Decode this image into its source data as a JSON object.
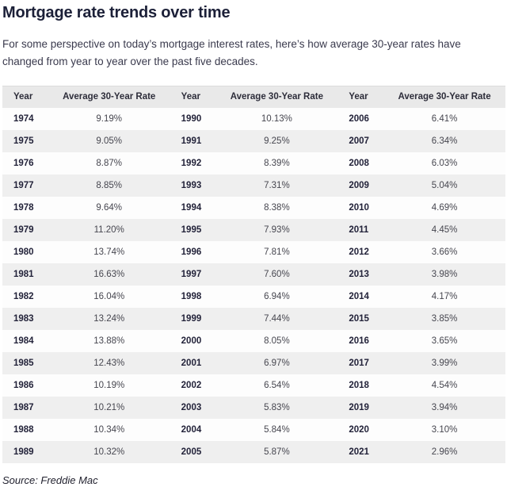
{
  "page": {
    "title": "Mortgage rate trends over time",
    "intro": "For some perspective on today’s mortgage interest rates, here’s how average 30-year rates have changed from year to year over the past five decades.",
    "source": "Source: Freddie Mac"
  },
  "table": {
    "column_headers": [
      "Year",
      "Average 30-Year Rate",
      "Year",
      "Average 30-Year Rate",
      "Year",
      "Average 30-Year Rate"
    ],
    "rows": [
      [
        "1974",
        "9.19%",
        "1990",
        "10.13%",
        "2006",
        "6.41%"
      ],
      [
        "1975",
        "9.05%",
        "1991",
        "9.25%",
        "2007",
        "6.34%"
      ],
      [
        "1976",
        "8.87%",
        "1992",
        "8.39%",
        "2008",
        "6.03%"
      ],
      [
        "1977",
        "8.85%",
        "1993",
        "7.31%",
        "2009",
        "5.04%"
      ],
      [
        "1978",
        "9.64%",
        "1994",
        "8.38%",
        "2010",
        "4.69%"
      ],
      [
        "1979",
        "11.20%",
        "1995",
        "7.93%",
        "2011",
        "4.45%"
      ],
      [
        "1980",
        "13.74%",
        "1996",
        "7.81%",
        "2012",
        "3.66%"
      ],
      [
        "1981",
        "16.63%",
        "1997",
        "7.60%",
        "2013",
        "3.98%"
      ],
      [
        "1982",
        "16.04%",
        "1998",
        "6.94%",
        "2014",
        "4.17%"
      ],
      [
        "1983",
        "13.24%",
        "1999",
        "7.44%",
        "2015",
        "3.85%"
      ],
      [
        "1984",
        "13.88%",
        "2000",
        "8.05%",
        "2016",
        "3.65%"
      ],
      [
        "1985",
        "12.43%",
        "2001",
        "6.97%",
        "2017",
        "3.99%"
      ],
      [
        "1986",
        "10.19%",
        "2002",
        "6.54%",
        "2018",
        "4.54%"
      ],
      [
        "1987",
        "10.21%",
        "2003",
        "5.83%",
        "2019",
        "3.94%"
      ],
      [
        "1988",
        "10.34%",
        "2004",
        "5.84%",
        "2020",
        "3.10%"
      ],
      [
        "1989",
        "10.32%",
        "2005",
        "5.87%",
        "2021",
        "2.96%"
      ]
    ]
  },
  "chart_data": {
    "type": "table",
    "title": "Mortgage rate trends over time",
    "xlabel": "Year",
    "ylabel": "Average 30-Year Rate",
    "source": "Freddie Mac",
    "x": [
      1974,
      1975,
      1976,
      1977,
      1978,
      1979,
      1980,
      1981,
      1982,
      1983,
      1984,
      1985,
      1986,
      1987,
      1988,
      1989,
      1990,
      1991,
      1992,
      1993,
      1994,
      1995,
      1996,
      1997,
      1998,
      1999,
      2000,
      2001,
      2002,
      2003,
      2004,
      2005,
      2006,
      2007,
      2008,
      2009,
      2010,
      2011,
      2012,
      2013,
      2014,
      2015,
      2016,
      2017,
      2018,
      2019,
      2020,
      2021
    ],
    "values": [
      9.19,
      9.05,
      8.87,
      8.85,
      9.64,
      11.2,
      13.74,
      16.63,
      16.04,
      13.24,
      13.88,
      12.43,
      10.19,
      10.21,
      10.34,
      10.32,
      10.13,
      9.25,
      8.39,
      7.31,
      8.38,
      7.93,
      7.81,
      7.6,
      6.94,
      7.44,
      8.05,
      6.97,
      6.54,
      5.83,
      5.84,
      5.87,
      6.41,
      6.34,
      6.03,
      5.04,
      4.69,
      4.45,
      3.66,
      3.98,
      4.17,
      3.85,
      3.65,
      3.99,
      4.54,
      3.94,
      3.1,
      2.96
    ],
    "colors": {
      "title_text": "#1c2038",
      "body_text": "#3a3a4d",
      "header_row_bg": "#e9e9e9",
      "stripe_row_bg": "#efefef"
    }
  }
}
